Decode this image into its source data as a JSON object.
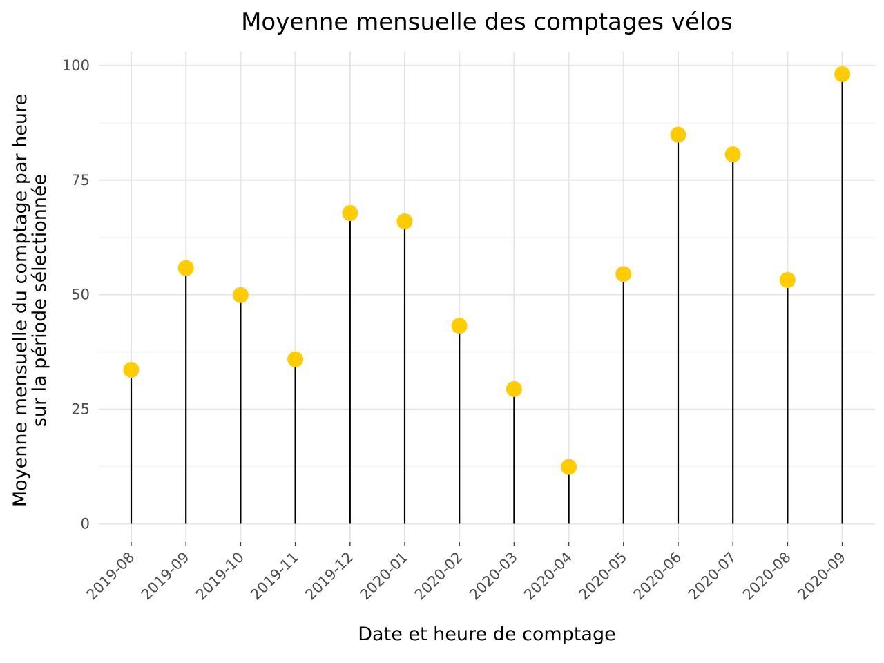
{
  "chart_data": {
    "type": "lollipop",
    "title": "Moyenne mensuelle des comptages vélos",
    "xlabel": "Date et heure de comptage",
    "ylabel_lines": [
      "Moyenne mensuelle du comptage par heure",
      "sur la période sélectionnée"
    ],
    "categories": [
      "2019-08",
      "2019-09",
      "2019-10",
      "2019-11",
      "2019-12",
      "2020-01",
      "2020-02",
      "2020-03",
      "2020-04",
      "2020-05",
      "2020-06",
      "2020-07",
      "2020-08",
      "2020-09"
    ],
    "values": [
      33.6,
      55.8,
      49.9,
      35.9,
      67.8,
      66.0,
      43.2,
      29.4,
      12.4,
      54.5,
      84.9,
      80.6,
      53.2,
      98.1
    ],
    "yticks": [
      0,
      25,
      50,
      75,
      100
    ],
    "ylim": [
      -4,
      103
    ],
    "grid": true,
    "colors": {
      "point": "#ffcc00",
      "stem": "#000000",
      "grid": "#e5e5e5"
    }
  }
}
